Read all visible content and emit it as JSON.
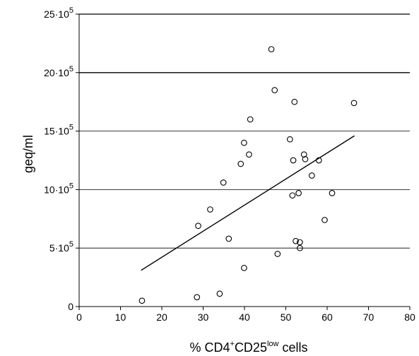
{
  "chart_data": {
    "type": "scatter",
    "title": "",
    "xlabel": "% CD4+CD25low cells",
    "xlabel_parts": [
      "% CD4",
      "+",
      "CD25",
      "low",
      " cells"
    ],
    "ylabel": "geq/ml",
    "xlim": [
      0,
      80
    ],
    "ylim": [
      0,
      2500000
    ],
    "x_ticks": [
      0,
      10,
      20,
      30,
      40,
      50,
      60,
      70,
      80
    ],
    "y_ticks": [
      {
        "value": 0,
        "base": "0",
        "exp": ""
      },
      {
        "value": 500000,
        "base": "5·10",
        "exp": "5"
      },
      {
        "value": 1000000,
        "base": "10·10",
        "exp": "5"
      },
      {
        "value": 1500000,
        "base": "15·10",
        "exp": "5"
      },
      {
        "value": 2000000,
        "base": "20·10",
        "exp": "5"
      },
      {
        "value": 2500000,
        "base": "25·10",
        "exp": "5"
      }
    ],
    "grid": "horizontal",
    "marker": "open-circle",
    "color": "#000000",
    "points": [
      {
        "x": 15.2,
        "y": 50000
      },
      {
        "x": 28.5,
        "y": 80000
      },
      {
        "x": 28.8,
        "y": 690000
      },
      {
        "x": 31.7,
        "y": 830000
      },
      {
        "x": 34.0,
        "y": 110000
      },
      {
        "x": 34.9,
        "y": 1060000
      },
      {
        "x": 36.2,
        "y": 580000
      },
      {
        "x": 39.1,
        "y": 1220000
      },
      {
        "x": 39.9,
        "y": 1400000
      },
      {
        "x": 39.9,
        "y": 330000
      },
      {
        "x": 41.1,
        "y": 1300000
      },
      {
        "x": 41.4,
        "y": 1600000
      },
      {
        "x": 46.5,
        "y": 2200000
      },
      {
        "x": 47.3,
        "y": 1850000
      },
      {
        "x": 48.0,
        "y": 450000
      },
      {
        "x": 51.0,
        "y": 1430000
      },
      {
        "x": 51.6,
        "y": 950000
      },
      {
        "x": 51.8,
        "y": 1250000
      },
      {
        "x": 52.1,
        "y": 1750000
      },
      {
        "x": 52.4,
        "y": 560000
      },
      {
        "x": 53.1,
        "y": 970000
      },
      {
        "x": 53.4,
        "y": 550000
      },
      {
        "x": 53.4,
        "y": 500000
      },
      {
        "x": 54.4,
        "y": 1300000
      },
      {
        "x": 54.7,
        "y": 1260000
      },
      {
        "x": 56.3,
        "y": 1120000
      },
      {
        "x": 58.0,
        "y": 1250000
      },
      {
        "x": 59.4,
        "y": 740000
      },
      {
        "x": 61.2,
        "y": 970000
      },
      {
        "x": 66.5,
        "y": 1740000
      }
    ],
    "trendline": {
      "x": [
        15.0,
        66.6
      ],
      "y": [
        310000,
        1460000
      ]
    }
  }
}
